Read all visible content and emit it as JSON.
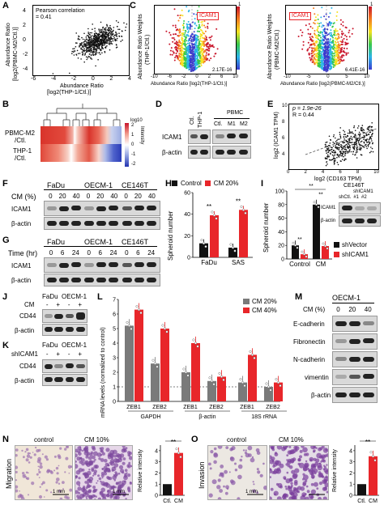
{
  "panels": {
    "A": {
      "label": "A",
      "corr_line1": "Pearson correlation",
      "corr_line2": "= 0.41",
      "ylabel1": "Abundance Ratio",
      "ylabel2": "[log2(PBMC-M2/Ctl.)]",
      "xlabel1": "Abundance Ratio",
      "xlabel2": "[log2(THP-1/Ctl.)]",
      "xticks": [
        "-6",
        "-4",
        "-2",
        "0",
        "2",
        "4"
      ],
      "yticks": [
        "-4",
        "-2",
        "0",
        "2",
        "4"
      ]
    },
    "C": {
      "label": "C",
      "left_ylabel1": "Abundance Ratio Weights",
      "left_ylabel2": "(THP-1/Ctl.)",
      "left_xlabel": "Abundance Ratio [log2(THP-1/Ctl.)]",
      "right_ylabel1": "Abundance Ratio Weights",
      "right_ylabel2": "(PBMC-M2/Ctl.)",
      "right_xlabel": "Abundance Ratio [log2(PBMC-M2/Ctl.)]",
      "icam1": "ICAM1",
      "left_xticks": [
        "-10",
        "-8",
        "-6",
        "-4",
        "-2",
        "0",
        "2",
        "4",
        "6",
        "8",
        "10"
      ],
      "right_xticks": [
        "-10",
        "-5",
        "0",
        "5",
        "10"
      ],
      "left_pmin": "2.17E-16",
      "right_pmin": "6.41E-16",
      "scale_top": "1"
    },
    "B": {
      "label": "B",
      "row1a": "PBMC-M2",
      "row1b": "/Ctl.",
      "row2a": "THP-1",
      "row2b": "/Ctl.",
      "cbar_title": "log10",
      "cbar_label": "Intensity",
      "cbar_ticks": [
        "2",
        "1",
        "0",
        "-1",
        "-2"
      ]
    },
    "D": {
      "label": "D",
      "lane_labels": [
        "Ctl.",
        "THP-1",
        "Ctl.",
        "M1",
        "M2"
      ],
      "group": "PBMC",
      "rows": [
        "ICAM1",
        "β-actin"
      ]
    },
    "E": {
      "label": "E",
      "p_text": "p = 1.9e-26",
      "r_text": "R = 0.44",
      "ylabel1": "log2 (ICAM1 TPM)",
      "xlabel": "log2 (CD163 TPM)",
      "xticks": [
        "0",
        "2",
        "4",
        "6",
        "8",
        "10"
      ],
      "yticks": [
        "4",
        "6",
        "8",
        "10"
      ]
    },
    "F": {
      "label": "F",
      "cells": [
        "FaDu",
        "OECM-1",
        "CE146T"
      ],
      "cm_label": "CM (%)",
      "conc": [
        "0",
        "20",
        "40",
        "0",
        "20",
        "40",
        "0",
        "20",
        "40"
      ],
      "rows": [
        "ICAM1",
        "β-actin"
      ]
    },
    "G": {
      "label": "G",
      "cells": [
        "FaDu",
        "OECM-1",
        "CE146T"
      ],
      "time_label": "Time (hr)",
      "times": [
        "0",
        "6",
        "24",
        "0",
        "6",
        "24",
        "0",
        "6",
        "24"
      ],
      "rows": [
        "ICAM1",
        "β-actin"
      ]
    },
    "H": {
      "label": "H",
      "legend": [
        "Control",
        "CM 20%"
      ],
      "ylabel": "Spheroid number",
      "groups": [
        "FaDu",
        "SAS"
      ],
      "sig": [
        "**",
        "**"
      ],
      "yticks": [
        "0",
        "20",
        "40",
        "60"
      ]
    },
    "I": {
      "label": "I",
      "ylabel": "Spheroid number",
      "groups": [
        "Control",
        "CM"
      ],
      "sig": [
        "**",
        "**",
        "**"
      ],
      "yticks": [
        "0",
        "20",
        "40",
        "60",
        "80",
        "100"
      ],
      "legend": [
        "shVector",
        "shICAM1"
      ],
      "blot_title": "CE146T",
      "blot_lanes": [
        "shCtl.",
        "#1",
        "#2"
      ],
      "blot_group": "shICAM1",
      "blot_rows": [
        "ICAM1",
        "β-actin"
      ]
    },
    "J": {
      "label": "J",
      "cells": [
        "FaDu",
        "OECM-1"
      ],
      "cm": "CM",
      "signs": [
        "-",
        "+",
        "-",
        "+"
      ],
      "rows": [
        "CD44",
        "β-actin"
      ]
    },
    "K": {
      "label": "K",
      "cells": [
        "FaDu",
        "OECM-1"
      ],
      "sh": "shICAM1",
      "signs": [
        "-",
        "+",
        "-",
        "+"
      ],
      "rows": [
        "CD44",
        "β-actin"
      ]
    },
    "L": {
      "label": "L",
      "legend": [
        "CM 20%",
        "CM 40%"
      ],
      "ylabel1": "mRNA levels (normalized to control)",
      "yticks": [
        "0",
        "1",
        "2",
        "3",
        "4",
        "5",
        "6",
        "7"
      ],
      "genes": [
        "ZEB1",
        "ZEB2",
        "ZEB1",
        "ZEB2",
        "ZEB1",
        "ZEB2"
      ],
      "refs": [
        "GAPDH",
        "β-actin",
        "18S rRNA"
      ]
    },
    "M": {
      "label": "M",
      "cell": "OECM-1",
      "cm_label": "CM (%)",
      "conc": [
        "0",
        "20",
        "40"
      ],
      "rows": [
        "E-cadherin",
        "Fibronectin",
        "N-cadherin",
        "vimentin",
        "β-actin"
      ]
    },
    "N": {
      "label": "N",
      "side": "Migration",
      "img1": "control",
      "img2": "CM 10%",
      "scale": "1 mm",
      "ylabel": "Relative intensity",
      "groups": [
        "Ctl.",
        "CM"
      ],
      "sig": "**",
      "yticks": [
        "0",
        "1",
        "2",
        "3",
        "4"
      ]
    },
    "O": {
      "label": "O",
      "side": "Invasion",
      "img1": "control",
      "img2": "CM 10%",
      "scale": "1 mm",
      "ylabel": "Relative intensity",
      "groups": [
        "Ctl.",
        "CM"
      ],
      "sig": "**",
      "yticks": [
        "0",
        "1",
        "2",
        "3",
        "4"
      ]
    }
  },
  "chart_data": [
    {
      "panel": "H",
      "type": "bar",
      "categories": [
        "FaDu",
        "SAS"
      ],
      "series": [
        {
          "name": "Control",
          "values": [
            13,
            9
          ]
        },
        {
          "name": "CM 20%",
          "values": [
            39,
            44
          ]
        }
      ],
      "ylim": [
        0,
        60
      ],
      "ylabel": "Spheroid number"
    },
    {
      "panel": "I",
      "type": "bar",
      "categories": [
        "Control",
        "CM"
      ],
      "series": [
        {
          "name": "shVector",
          "values": [
            20,
            80
          ]
        },
        {
          "name": "shICAM1",
          "values": [
            7,
            19
          ]
        }
      ],
      "ylim": [
        0,
        100
      ],
      "ylabel": "Spheroid number"
    },
    {
      "panel": "L",
      "type": "bar",
      "categories": [
        "ZEB1 GAPDH",
        "ZEB2 GAPDH",
        "ZEB1 β-actin",
        "ZEB2 β-actin",
        "ZEB1 18S rRNA",
        "ZEB2 18S rRNA"
      ],
      "series": [
        {
          "name": "CM 20%",
          "values": [
            5.2,
            2.6,
            2.0,
            1.4,
            1.3,
            1.0
          ]
        },
        {
          "name": "CM 40%",
          "values": [
            6.3,
            5.0,
            4.0,
            1.7,
            3.2,
            1.3
          ]
        }
      ],
      "ylim": [
        0,
        7
      ]
    },
    {
      "panel": "N",
      "type": "bar",
      "categories": [
        "Ctl.",
        "CM"
      ],
      "values": [
        1,
        3.8
      ],
      "ylim": [
        0,
        4.5
      ],
      "ylabel": "Relative intensity"
    },
    {
      "panel": "O",
      "type": "bar",
      "categories": [
        "Ctl.",
        "CM"
      ],
      "values": [
        1,
        3.5
      ],
      "ylim": [
        0,
        4.5
      ],
      "ylabel": "Relative intensity"
    }
  ],
  "colors": {
    "red": "#e8262a",
    "gray": "#7a7a7a",
    "black": "#111111"
  }
}
